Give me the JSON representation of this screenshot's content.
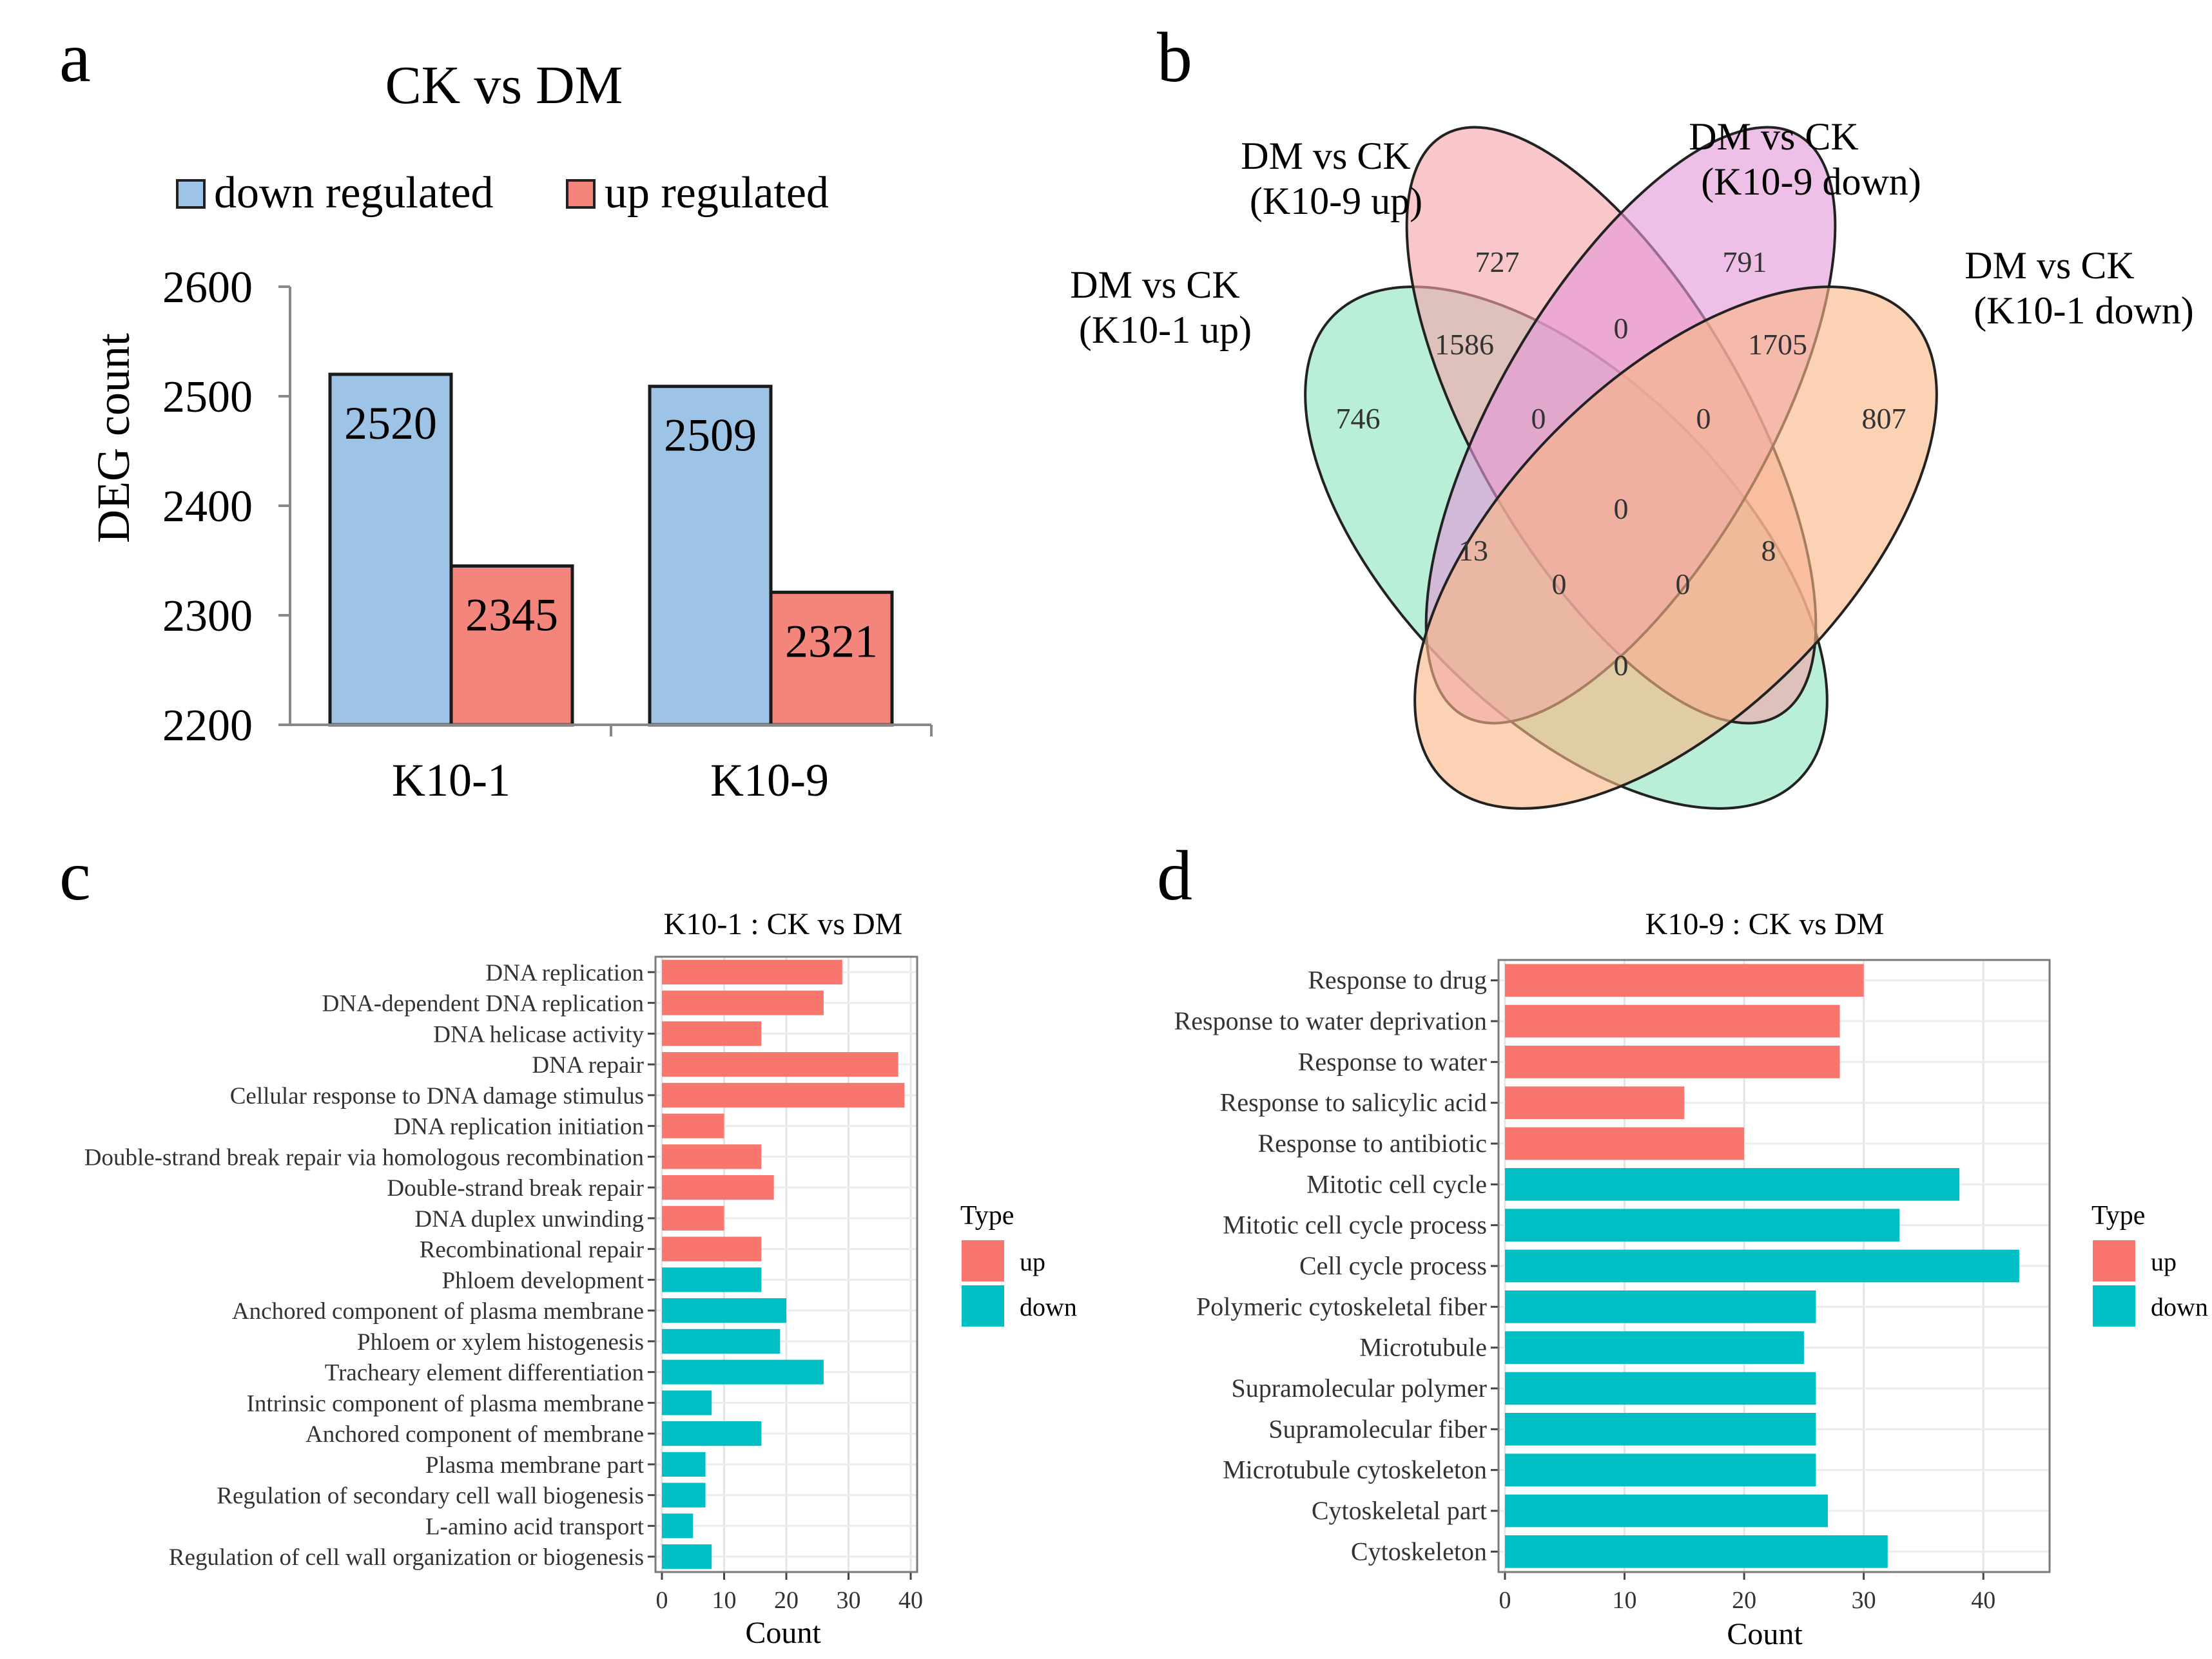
{
  "colors": {
    "down_bar": "#9dc3e6",
    "up_bar": "#f4857c",
    "go_up": "#f8766d",
    "go_down": "#00bfc4",
    "venn1": "#8ee4be",
    "venn2": "#f5a5a9",
    "venn3": "#e497d8",
    "venn4": "#f9b786"
  },
  "panel_a": {
    "letter": "a",
    "chart_data": {
      "type": "bar",
      "title": "CK vs DM",
      "categories": [
        "K10-1",
        "K10-9"
      ],
      "series": [
        {
          "name": "down regulated",
          "values": [
            2520,
            2509
          ]
        },
        {
          "name": "up regulated",
          "values": [
            2345,
            2321
          ]
        }
      ],
      "ylabel": "DEG count",
      "ylim": [
        2200,
        2600
      ],
      "yticks": [
        2200,
        2300,
        2400,
        2500,
        2600
      ],
      "legend": "top"
    }
  },
  "panel_b": {
    "letter": "b",
    "chart_data": {
      "type": "venn",
      "sets": [
        {
          "line1": "DM vs CK",
          "line2": "(K10-1 up)"
        },
        {
          "line1": "DM vs CK",
          "line2": "(K10-9 up)"
        },
        {
          "line1": "DM vs CK",
          "line2": "(K10-9 down)"
        },
        {
          "line1": "DM vs CK",
          "line2": "(K10-1 down)"
        }
      ],
      "regions": [
        {
          "sets": "A",
          "value": "746"
        },
        {
          "sets": "B",
          "value": "727"
        },
        {
          "sets": "C",
          "value": "791"
        },
        {
          "sets": "D",
          "value": "807"
        },
        {
          "sets": "AB",
          "value": "1586"
        },
        {
          "sets": "BC",
          "value": "0"
        },
        {
          "sets": "CD",
          "value": "1705"
        },
        {
          "sets": "ABC",
          "value": "0"
        },
        {
          "sets": "BCD",
          "value": "0"
        },
        {
          "sets": "ABCD",
          "value": "0"
        },
        {
          "sets": "AC",
          "value": "13"
        },
        {
          "sets": "BD",
          "value": "8"
        },
        {
          "sets": "ACD",
          "value": "0"
        },
        {
          "sets": "ABD",
          "value": "0"
        },
        {
          "sets": "AD",
          "value": "0"
        }
      ]
    }
  },
  "panel_c": {
    "letter": "c",
    "chart_data": {
      "type": "bar",
      "orientation": "horizontal",
      "title": "K10-1 : CK vs DM",
      "xlabel": "Count",
      "xlim": [
        0,
        40
      ],
      "xticks": [
        0,
        10,
        20,
        30,
        40
      ],
      "legend_title": "Type",
      "legend_items": [
        "up",
        "down"
      ],
      "legend": "right",
      "bars": [
        {
          "label": "DNA replication",
          "value": 29,
          "type": "up"
        },
        {
          "label": "DNA-dependent DNA replication",
          "value": 26,
          "type": "up"
        },
        {
          "label": "DNA helicase activity",
          "value": 16,
          "type": "up"
        },
        {
          "label": "DNA repair",
          "value": 38,
          "type": "up"
        },
        {
          "label": "Cellular response to DNA damage stimulus",
          "value": 39,
          "type": "up"
        },
        {
          "label": "DNA replication initiation",
          "value": 10,
          "type": "up"
        },
        {
          "label": "Double-strand break repair via homologous recombination",
          "value": 16,
          "type": "up"
        },
        {
          "label": "Double-strand break repair",
          "value": 18,
          "type": "up"
        },
        {
          "label": "DNA duplex unwinding",
          "value": 10,
          "type": "up"
        },
        {
          "label": "Recombinational repair",
          "value": 16,
          "type": "up"
        },
        {
          "label": "Phloem development",
          "value": 16,
          "type": "down"
        },
        {
          "label": "Anchored component of plasma membrane",
          "value": 20,
          "type": "down"
        },
        {
          "label": "Phloem or xylem histogenesis",
          "value": 19,
          "type": "down"
        },
        {
          "label": "Tracheary element differentiation",
          "value": 26,
          "type": "down"
        },
        {
          "label": "Intrinsic component of plasma membrane",
          "value": 8,
          "type": "down"
        },
        {
          "label": "Anchored component of membrane",
          "value": 16,
          "type": "down"
        },
        {
          "label": "Plasma membrane part",
          "value": 7,
          "type": "down"
        },
        {
          "label": "Regulation of secondary cell wall biogenesis",
          "value": 7,
          "type": "down"
        },
        {
          "label": "L-amino acid transport",
          "value": 5,
          "type": "down"
        },
        {
          "label": "Regulation of cell wall organization or biogenesis",
          "value": 8,
          "type": "down"
        }
      ]
    }
  },
  "panel_d": {
    "letter": "d",
    "chart_data": {
      "type": "bar",
      "orientation": "horizontal",
      "title": "K10-9 : CK vs DM",
      "xlabel": "Count",
      "xlim": [
        0,
        45
      ],
      "xticks": [
        0,
        10,
        20,
        30,
        40
      ],
      "legend_title": "Type",
      "legend_items": [
        "up",
        "down"
      ],
      "legend": "right",
      "bars": [
        {
          "label": "Response to drug",
          "value": 30,
          "type": "up"
        },
        {
          "label": "Response to water deprivation",
          "value": 28,
          "type": "up"
        },
        {
          "label": "Response to water",
          "value": 28,
          "type": "up"
        },
        {
          "label": "Response to salicylic acid",
          "value": 15,
          "type": "up"
        },
        {
          "label": "Response to antibiotic",
          "value": 20,
          "type": "up"
        },
        {
          "label": "Mitotic cell cycle",
          "value": 38,
          "type": "down"
        },
        {
          "label": "Mitotic cell cycle process",
          "value": 33,
          "type": "down"
        },
        {
          "label": "Cell cycle process",
          "value": 43,
          "type": "down"
        },
        {
          "label": "Polymeric cytoskeletal fiber",
          "value": 26,
          "type": "down"
        },
        {
          "label": "Microtubule",
          "value": 25,
          "type": "down"
        },
        {
          "label": "Supramolecular polymer",
          "value": 26,
          "type": "down"
        },
        {
          "label": "Supramolecular fiber",
          "value": 26,
          "type": "down"
        },
        {
          "label": "Microtubule cytoskeleton",
          "value": 26,
          "type": "down"
        },
        {
          "label": "Cytoskeletal part",
          "value": 27,
          "type": "down"
        },
        {
          "label": "Cytoskeleton",
          "value": 32,
          "type": "down"
        }
      ]
    }
  }
}
